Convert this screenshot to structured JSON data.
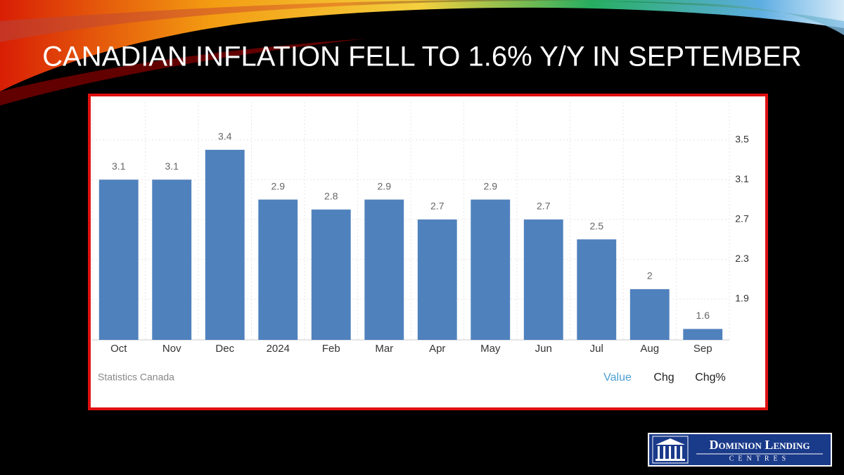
{
  "slide_title": "CANADIAN INFLATION FELL TO 1.6% Y/Y IN SEPTEMBER",
  "chart_data": {
    "type": "bar",
    "categories": [
      "Oct",
      "Nov",
      "Dec",
      "2024",
      "Feb",
      "Mar",
      "Apr",
      "May",
      "Jun",
      "Jul",
      "Aug",
      "Sep"
    ],
    "values": [
      3.1,
      3.1,
      3.4,
      2.9,
      2.8,
      2.9,
      2.7,
      2.9,
      2.7,
      2.5,
      2,
      1.6
    ],
    "color": "#4f81bd",
    "ylim": [
      1.49,
      3.88
    ],
    "yticks": [
      1.9,
      2.3,
      2.7,
      3.1,
      3.5
    ],
    "grid": true,
    "source": "Statistics Canada",
    "tabs": [
      "Value",
      "Chg",
      "Chg%"
    ]
  },
  "logo": {
    "name": "Dominion Lending",
    "sub": "CENTRES"
  }
}
